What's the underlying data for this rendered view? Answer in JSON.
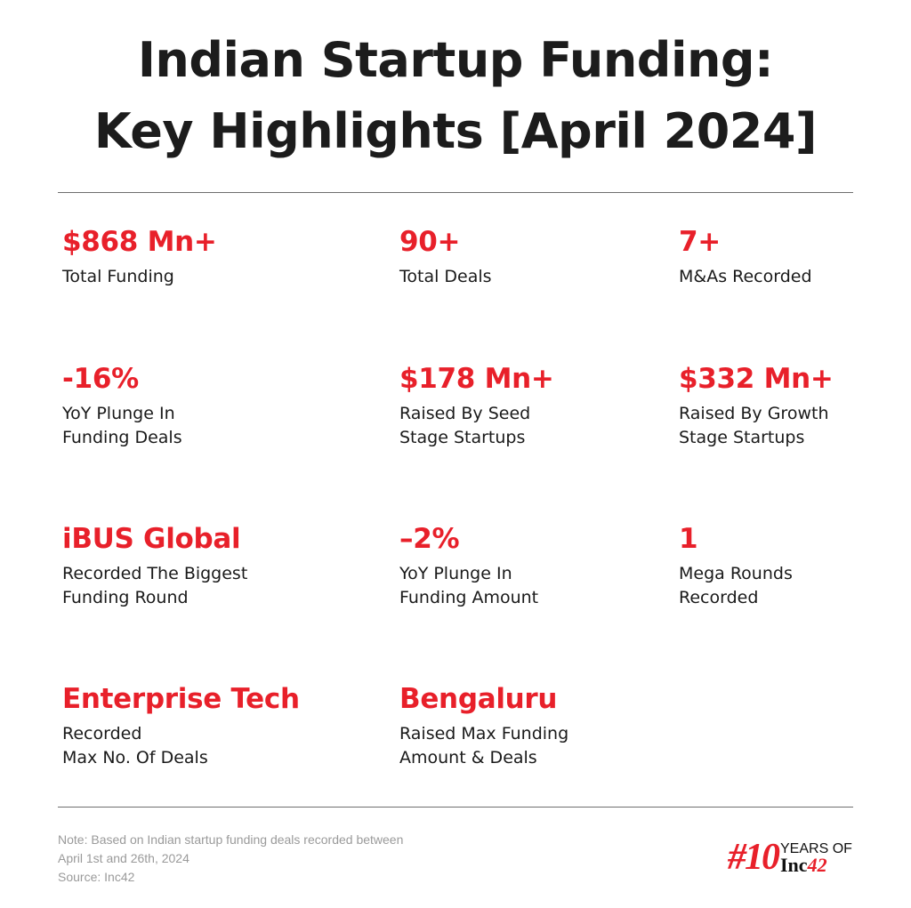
{
  "title": {
    "line1": "Indian Startup Funding:",
    "line2": "Key Highlights [April 2024]"
  },
  "accent_color": "#e8202a",
  "stats": [
    {
      "value": "$868 Mn+",
      "label": "Total Funding"
    },
    {
      "value": "90+",
      "label": "Total Deals"
    },
    {
      "value": "7+",
      "label": "M&As Recorded"
    },
    {
      "value": "-16%",
      "label": "YoY Plunge In\nFunding Deals"
    },
    {
      "value": "$178 Mn+",
      "label": "Raised By Seed\nStage Startups"
    },
    {
      "value": "$332 Mn+",
      "label": "Raised By Growth\nStage Startups"
    },
    {
      "value": "iBUS Global",
      "label": "Recorded The Biggest\nFunding Round"
    },
    {
      "value": "–2%",
      "label": "YoY Plunge In\nFunding Amount"
    },
    {
      "value": "1",
      "label": "Mega Rounds\nRecorded"
    },
    {
      "value": "Enterprise Tech",
      "label": "Recorded\nMax No. Of Deals"
    },
    {
      "value": "Bengaluru",
      "label": "Raised Max Funding\nAmount & Deals"
    }
  ],
  "note": {
    "line1": "Note: Based on Indian startup funding deals recorded between",
    "line2": "April 1st and 26th, 2024",
    "source": "Source: Inc42"
  },
  "logo": {
    "number": "#10",
    "years": "YEARS OF",
    "brand": "Inc",
    "brand_num": "42"
  }
}
